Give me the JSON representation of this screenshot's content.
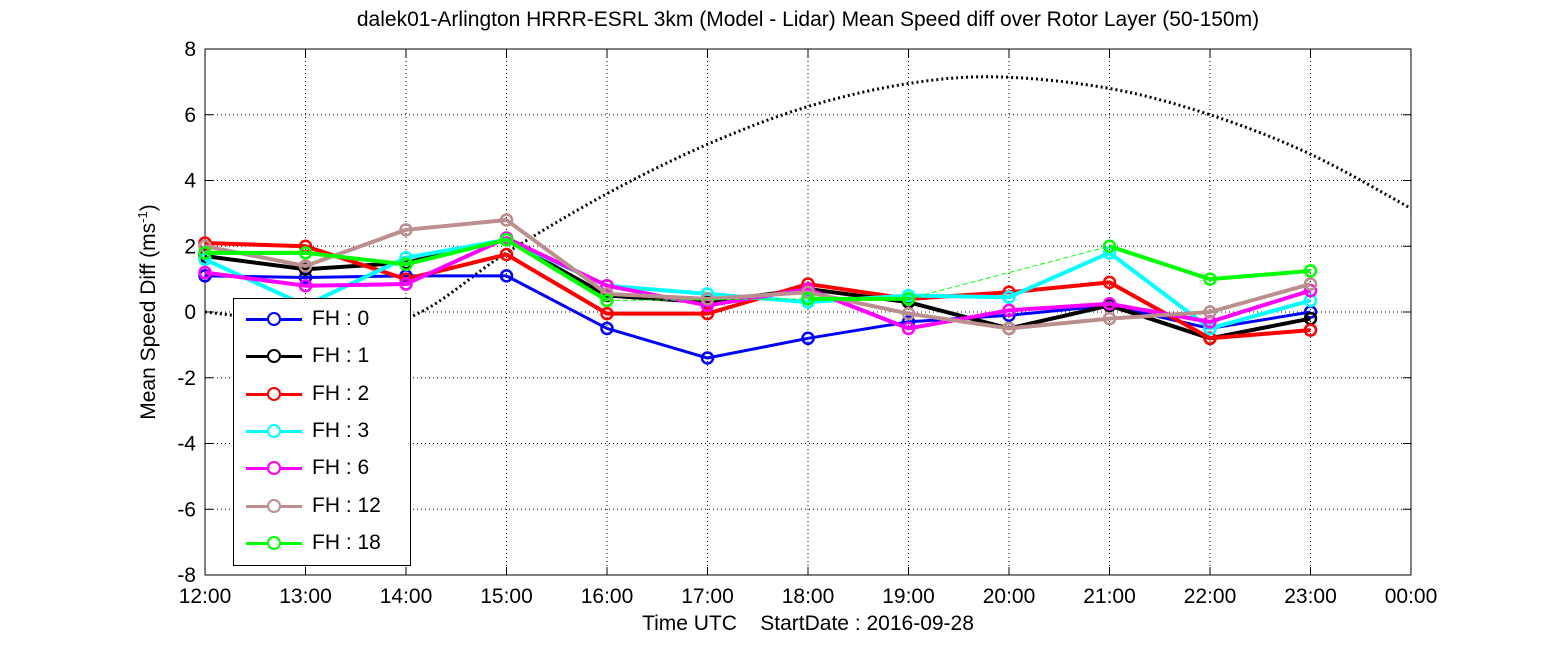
{
  "chart_data": {
    "type": "line",
    "title": "dalek01-Arlington HRRR-ESRL 3km (Model - Lidar) Mean Speed diff over Rotor Layer (50-150m)",
    "xlabel": "Time UTC    StartDate : 2016-09-28",
    "ylabel": "Mean Speed Diff (ms",
    "ylabel_sup": "-1",
    "ylabel_close": ")",
    "x_ticks": [
      "12:00",
      "13:00",
      "14:00",
      "15:00",
      "16:00",
      "17:00",
      "18:00",
      "19:00",
      "20:00",
      "21:00",
      "22:00",
      "23:00",
      "00:00"
    ],
    "y_ticks": [
      "8",
      "6",
      "4",
      "2",
      "0",
      "-2",
      "-4",
      "-6",
      "-8"
    ],
    "xlim": [
      0,
      12
    ],
    "ylim": [
      -8,
      8
    ],
    "grid": true,
    "legend_position": "lower-left",
    "series": [
      {
        "name": "FH : 0",
        "color": "#0000ff",
        "values": [
          1.1,
          1.05,
          1.1,
          1.1,
          -0.5,
          -1.4,
          -0.8,
          -0.3,
          -0.1,
          0.2,
          -0.5,
          0.0
        ]
      },
      {
        "name": "FH : 1",
        "color": "#000000",
        "values": [
          1.7,
          1.3,
          1.5,
          2.2,
          0.5,
          0.3,
          0.7,
          0.3,
          -0.5,
          0.2,
          -0.8,
          -0.2
        ]
      },
      {
        "name": "FH : 2",
        "color": "#ff0000",
        "values": [
          2.1,
          2.0,
          1.0,
          1.75,
          -0.05,
          -0.05,
          0.85,
          0.4,
          0.6,
          0.9,
          -0.8,
          -0.55
        ]
      },
      {
        "name": "FH : 3",
        "color": "#00ffff",
        "values": [
          1.6,
          0.2,
          1.65,
          2.2,
          0.8,
          0.55,
          0.3,
          0.5,
          0.45,
          1.8,
          -0.5,
          0.35
        ]
      },
      {
        "name": "FH : 6",
        "color": "#ff00ff",
        "values": [
          1.2,
          0.8,
          0.85,
          2.25,
          0.8,
          0.2,
          0.7,
          -0.5,
          0.05,
          0.25,
          -0.3,
          0.65
        ]
      },
      {
        "name": "FH : 12",
        "color": "#bc8f8f",
        "values": [
          2.0,
          1.4,
          2.5,
          2.8,
          0.55,
          0.4,
          0.6,
          -0.05,
          -0.5,
          -0.2,
          0.0,
          0.85
        ]
      },
      {
        "name": "FH : 18",
        "color": "#00ff00",
        "values": [
          1.8,
          1.8,
          1.45,
          2.2,
          0.35,
          null,
          0.4,
          0.4,
          null,
          2.0,
          1.0,
          1.25
        ]
      }
    ],
    "dashed_gap_series": {
      "name": "FH : 18",
      "color": "#00ff00"
    },
    "dotted_curve": {
      "color": "#000000",
      "x": [
        0,
        1,
        2,
        3,
        4,
        5,
        6,
        7,
        7.9,
        9,
        10,
        11,
        12
      ],
      "y": [
        0,
        -0.3,
        -0.2,
        1.8,
        3.6,
        5.1,
        6.25,
        6.95,
        7.15,
        6.8,
        6.0,
        4.8,
        3.15
      ]
    }
  }
}
